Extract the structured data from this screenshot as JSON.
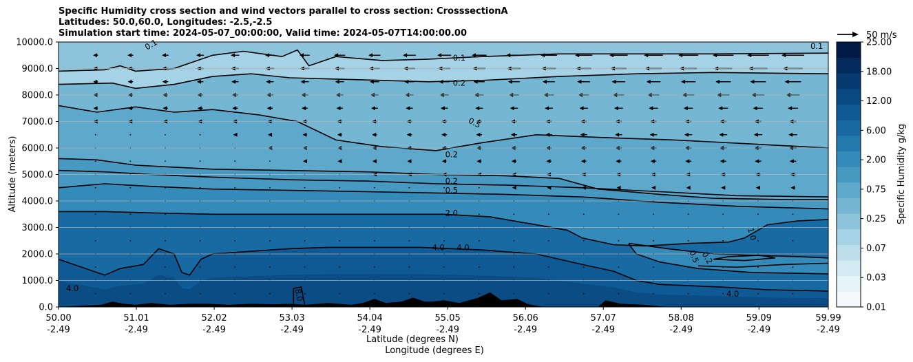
{
  "header": {
    "line1": "Specific Humidity cross section and wind vectors parallel to cross section: CrosssectionA",
    "line2": "Latitudes: 50.0,60.0, Longitudes: -2.5,-2.5",
    "line3": "Simulation start time: 2024-05-07_00:00:00, Valid time: 2024-05-07T14:00:00.00"
  },
  "colors": {
    "fill_levels": [
      "#f4fafc",
      "#e6f3f8",
      "#d3eaf2",
      "#bddfec",
      "#a5d2e4",
      "#8dc4dc",
      "#75b6d3",
      "#5ea8cb",
      "#4899c2",
      "#348ab8",
      "#237aaf",
      "#186aa3",
      "#0f5a94",
      "#0a4a83",
      "#073a71",
      "#052b5e",
      "#021a46"
    ],
    "contour": "#000000",
    "terrain": "#000000",
    "grid": "#b0b0b0"
  },
  "chart_data": {
    "type": "contour cross-section",
    "xlabel": "Latitude (degrees N)",
    "xlabel2": "Longitude (degrees E)",
    "ylabel": "Altitude (meters)",
    "xlim": [
      50.0,
      59.99
    ],
    "ylim": [
      0,
      10000
    ],
    "x_ticks": [
      {
        "lat": "50.00",
        "lon": "-2.49",
        "x": 50.0
      },
      {
        "lat": "51.01",
        "lon": "-2.49",
        "x": 51.01
      },
      {
        "lat": "52.02",
        "lon": "-2.49",
        "x": 52.02
      },
      {
        "lat": "53.03",
        "lon": "-2.49",
        "x": 53.03
      },
      {
        "lat": "54.04",
        "lon": "-2.49",
        "x": 54.04
      },
      {
        "lat": "55.05",
        "lon": "-2.49",
        "x": 55.05
      },
      {
        "lat": "56.06",
        "lon": "-2.49",
        "x": 56.06
      },
      {
        "lat": "57.07",
        "lon": "-2.49",
        "x": 57.07
      },
      {
        "lat": "58.08",
        "lon": "-2.49",
        "x": 58.08
      },
      {
        "lat": "59.09",
        "lon": "-2.49",
        "x": 59.09
      },
      {
        "lat": "59.99",
        "lon": "-2.49",
        "x": 59.99
      }
    ],
    "y_ticks": [
      {
        "label": "0.0",
        "y": 0
      },
      {
        "label": "1000.0",
        "y": 1000
      },
      {
        "label": "2000.0",
        "y": 2000
      },
      {
        "label": "3000.0",
        "y": 3000
      },
      {
        "label": "4000.0",
        "y": 4000
      },
      {
        "label": "5000.0",
        "y": 5000
      },
      {
        "label": "6000.0",
        "y": 6000
      },
      {
        "label": "7000.0",
        "y": 7000
      },
      {
        "label": "8000.0",
        "y": 8000
      },
      {
        "label": "9000.0",
        "y": 9000
      },
      {
        "label": "10000.0",
        "y": 10000
      }
    ],
    "grid": "horizontal",
    "colorbar": {
      "label": "Specific Humidity g/kg",
      "ticks": [
        "0.01",
        "0.03",
        "0.07",
        "0.25",
        "0.75",
        "2.00",
        "6.00",
        "12.00",
        "18.00",
        "25.00"
      ]
    },
    "quiver_key": "50 m/s",
    "contour_labels": [
      {
        "text": "0.1",
        "x": 55.2,
        "y": 9400,
        "rot": 0
      },
      {
        "text": "0.2",
        "x": 55.2,
        "y": 8450,
        "rot": 0
      },
      {
        "text": "0.5",
        "x": 55.4,
        "y": 6950,
        "rot": 28
      },
      {
        "text": "0.2",
        "x": 55.1,
        "y": 5750,
        "rot": 0
      },
      {
        "text": "0.2",
        "x": 55.1,
        "y": 4750,
        "rot": 0
      },
      {
        "text": "0.5",
        "x": 55.1,
        "y": 4400,
        "rot": 0
      },
      {
        "text": "2.0",
        "x": 55.1,
        "y": 3550,
        "rot": 0
      },
      {
        "text": "4.0",
        "x": 54.93,
        "y": 2250,
        "rot": 0
      },
      {
        "text": "4.0",
        "x": 55.25,
        "y": 2250,
        "rot": 0
      },
      {
        "text": "4.0",
        "x": 50.18,
        "y": 700,
        "rot": 0
      },
      {
        "text": "8.0",
        "x": 53.12,
        "y": 450,
        "rot": 80
      },
      {
        "text": "4.0",
        "x": 58.75,
        "y": 500,
        "rot": 0
      },
      {
        "text": "1.0",
        "x": 59.0,
        "y": 2750,
        "rot": 75
      },
      {
        "text": "0.2",
        "x": 58.42,
        "y": 1850,
        "rot": 60
      },
      {
        "text": "0.5",
        "x": 58.25,
        "y": 1900,
        "rot": 70
      },
      {
        "text": "0.1",
        "x": 59.84,
        "y": 9850,
        "rot": 0
      },
      {
        "text": "0.1",
        "x": 51.2,
        "y": 9900,
        "rot": -30
      }
    ],
    "contours": [
      {
        "level": "0.1",
        "points": [
          [
            50.0,
            8900
          ],
          [
            50.6,
            8950
          ],
          [
            50.8,
            9100
          ],
          [
            51.0,
            8900
          ],
          [
            51.5,
            9000
          ],
          [
            52.0,
            9500
          ],
          [
            52.4,
            9650
          ],
          [
            52.9,
            9450
          ],
          [
            53.1,
            9700
          ],
          [
            53.25,
            9100
          ],
          [
            53.6,
            9450
          ],
          [
            54.2,
            9300
          ],
          [
            54.8,
            9350
          ],
          [
            55.5,
            9450
          ],
          [
            56.5,
            9550
          ],
          [
            57.5,
            9550
          ],
          [
            58.5,
            9550
          ],
          [
            59.99,
            9580
          ]
        ]
      },
      {
        "level": "0.2",
        "points": [
          [
            50.0,
            8400
          ],
          [
            50.7,
            8450
          ],
          [
            51.0,
            8250
          ],
          [
            51.5,
            8400
          ],
          [
            52.0,
            8700
          ],
          [
            52.5,
            8800
          ],
          [
            53.0,
            8650
          ],
          [
            53.6,
            8600
          ],
          [
            54.2,
            8550
          ],
          [
            54.8,
            8500
          ],
          [
            55.5,
            8550
          ],
          [
            56.5,
            8700
          ],
          [
            57.5,
            8800
          ],
          [
            58.5,
            8850
          ],
          [
            59.99,
            8800
          ]
        ]
      },
      {
        "level": "0.5",
        "points": [
          [
            50.0,
            7600
          ],
          [
            50.5,
            7350
          ],
          [
            51.0,
            7550
          ],
          [
            51.5,
            7350
          ],
          [
            52.0,
            7450
          ],
          [
            52.6,
            7250
          ],
          [
            53.1,
            7000
          ],
          [
            53.6,
            6300
          ],
          [
            54.2,
            6050
          ],
          [
            54.9,
            5900
          ],
          [
            55.5,
            6200
          ],
          [
            56.2,
            6500
          ],
          [
            57.0,
            6400
          ],
          [
            58.0,
            6300
          ],
          [
            59.0,
            6150
          ],
          [
            59.99,
            6000
          ]
        ]
      },
      {
        "level": "0.2",
        "points": [
          [
            50.0,
            5600
          ],
          [
            50.5,
            5550
          ],
          [
            51.0,
            5350
          ],
          [
            52.0,
            5200
          ],
          [
            53.0,
            5150
          ],
          [
            54.0,
            5100
          ],
          [
            54.9,
            5000
          ],
          [
            55.8,
            4950
          ],
          [
            56.5,
            4850
          ],
          [
            57.0,
            4450
          ],
          [
            57.8,
            4250
          ],
          [
            58.5,
            4100
          ],
          [
            59.5,
            4050
          ],
          [
            59.99,
            4050
          ]
        ]
      },
      {
        "level": "0.2",
        "points": [
          [
            50.0,
            5150
          ],
          [
            50.6,
            5100
          ],
          [
            51.2,
            5000
          ],
          [
            52.0,
            4900
          ],
          [
            53.0,
            4800
          ],
          [
            54.0,
            4750
          ],
          [
            54.9,
            4650
          ],
          [
            55.8,
            4600
          ],
          [
            56.8,
            4500
          ],
          [
            57.8,
            4350
          ],
          [
            58.8,
            4200
          ],
          [
            59.99,
            4150
          ]
        ]
      },
      {
        "level": "0.5",
        "points": [
          [
            50.0,
            4500
          ],
          [
            50.6,
            4650
          ],
          [
            51.2,
            4550
          ],
          [
            52.0,
            4450
          ],
          [
            53.0,
            4400
          ],
          [
            54.0,
            4350
          ],
          [
            54.9,
            4300
          ],
          [
            55.8,
            4250
          ],
          [
            56.8,
            4150
          ],
          [
            57.8,
            3950
          ],
          [
            58.8,
            3800
          ],
          [
            59.99,
            3700
          ]
        ]
      },
      {
        "level": "2.0",
        "points": [
          [
            50.0,
            3600
          ],
          [
            50.6,
            3600
          ],
          [
            51.2,
            3550
          ],
          [
            52.0,
            3500
          ],
          [
            53.0,
            3500
          ],
          [
            54.0,
            3500
          ],
          [
            55.0,
            3500
          ],
          [
            55.6,
            3400
          ],
          [
            56.2,
            3100
          ],
          [
            56.6,
            2900
          ],
          [
            56.8,
            2600
          ],
          [
            57.2,
            2350
          ],
          [
            57.6,
            2300
          ],
          [
            58.2,
            2400
          ],
          [
            58.7,
            2450
          ],
          [
            58.9,
            2600
          ],
          [
            59.2,
            3100
          ],
          [
            59.6,
            3250
          ],
          [
            59.99,
            3300
          ]
        ]
      },
      {
        "level": "4.0",
        "points": [
          [
            50.0,
            1800
          ],
          [
            50.3,
            1500
          ],
          [
            50.6,
            1200
          ],
          [
            50.8,
            1450
          ],
          [
            51.1,
            1600
          ],
          [
            51.3,
            2200
          ],
          [
            51.5,
            2000
          ],
          [
            51.6,
            1300
          ],
          [
            51.7,
            1200
          ],
          [
            51.85,
            1800
          ],
          [
            52.0,
            2000
          ],
          [
            52.5,
            2100
          ],
          [
            53.0,
            2200
          ],
          [
            53.5,
            2250
          ],
          [
            54.0,
            2250
          ],
          [
            54.7,
            2250
          ],
          [
            55.5,
            2150
          ],
          [
            56.2,
            2000
          ],
          [
            56.8,
            1600
          ],
          [
            57.2,
            1350
          ],
          [
            57.5,
            1000
          ],
          [
            57.8,
            850
          ],
          [
            58.2,
            800
          ],
          [
            58.6,
            750
          ],
          [
            59.2,
            650
          ],
          [
            59.99,
            600
          ]
        ]
      },
      {
        "level": "inner",
        "points": [
          [
            57.4,
            2400
          ],
          [
            57.9,
            2200
          ],
          [
            58.5,
            2000
          ],
          [
            59.0,
            1950
          ],
          [
            59.6,
            1900
          ],
          [
            59.99,
            1850
          ]
        ]
      },
      {
        "level": "inner",
        "points": [
          [
            57.4,
            2380
          ],
          [
            57.5,
            2000
          ],
          [
            57.8,
            1700
          ],
          [
            58.3,
            1450
          ],
          [
            59.0,
            1300
          ],
          [
            59.99,
            1250
          ]
        ]
      },
      {
        "level": "inner",
        "points": [
          [
            58.5,
            1800
          ],
          [
            58.9,
            1750
          ],
          [
            59.3,
            1850
          ],
          [
            59.1,
            1950
          ],
          [
            58.7,
            1900
          ],
          [
            58.5,
            1800
          ]
        ]
      },
      {
        "level": "inner",
        "points": [
          [
            58.3,
            1550
          ],
          [
            58.8,
            1500
          ],
          [
            59.4,
            1600
          ],
          [
            59.99,
            1650
          ]
        ]
      },
      {
        "level": "8.0",
        "points": [
          [
            53.05,
            0
          ],
          [
            53.05,
            700
          ],
          [
            53.15,
            750
          ],
          [
            53.2,
            0
          ]
        ]
      }
    ],
    "terrain": [
      [
        50.0,
        0
      ],
      [
        50.3,
        50
      ],
      [
        50.55,
        80
      ],
      [
        50.7,
        200
      ],
      [
        50.85,
        120
      ],
      [
        51.0,
        80
      ],
      [
        51.2,
        150
      ],
      [
        51.45,
        80
      ],
      [
        51.7,
        120
      ],
      [
        51.95,
        120
      ],
      [
        52.2,
        80
      ],
      [
        52.5,
        120
      ],
      [
        52.8,
        100
      ],
      [
        53.0,
        120
      ],
      [
        53.2,
        80
      ],
      [
        53.5,
        150
      ],
      [
        53.8,
        80
      ],
      [
        53.95,
        150
      ],
      [
        54.1,
        300
      ],
      [
        54.25,
        150
      ],
      [
        54.45,
        200
      ],
      [
        54.6,
        350
      ],
      [
        54.75,
        200
      ],
      [
        54.85,
        200
      ],
      [
        55.0,
        250
      ],
      [
        55.2,
        150
      ],
      [
        55.45,
        350
      ],
      [
        55.6,
        550
      ],
      [
        55.75,
        250
      ],
      [
        55.95,
        300
      ],
      [
        56.1,
        100
      ],
      [
        56.3,
        0
      ],
      [
        57.0,
        0
      ],
      [
        57.1,
        250
      ],
      [
        57.3,
        120
      ],
      [
        57.6,
        80
      ],
      [
        57.9,
        0
      ],
      [
        59.99,
        0
      ]
    ]
  }
}
